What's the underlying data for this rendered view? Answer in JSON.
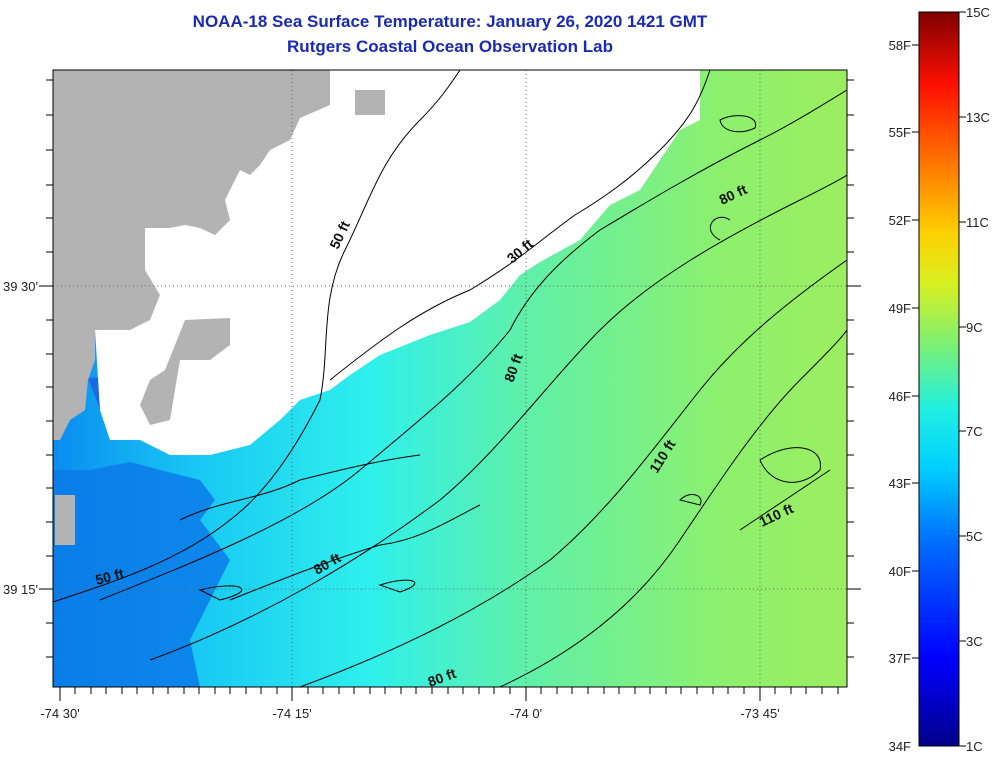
{
  "header": {
    "title": "NOAA-18 Sea Surface Temperature:  January 26, 2020 1421 GMT",
    "subtitle": "Rutgers Coastal Ocean Observation Lab"
  },
  "map": {
    "x_ticks": [
      "-74 30'",
      "-74 15'",
      "-74 0'",
      "-73 45'"
    ],
    "y_ticks": [
      "39 30'",
      "39 15'"
    ],
    "contour_labels": [
      "50 ft",
      "30 ft",
      "80 ft",
      "80 ft",
      "110 ft",
      "110 ft",
      "50 ft",
      "80 ft",
      "80 ft"
    ],
    "colors": {
      "land": "#b3b3b3",
      "cloud": "#ffffff",
      "contour": "#000000"
    }
  },
  "colorbar": {
    "fahrenheit_labels": [
      "58F",
      "55F",
      "52F",
      "49F",
      "46F",
      "43F",
      "40F",
      "37F",
      "34F"
    ],
    "celsius_labels": [
      "15C",
      "13C",
      "11C",
      "9C",
      "7C",
      "5C",
      "3C",
      "1C"
    ],
    "range_c": [
      1,
      15
    ]
  }
}
